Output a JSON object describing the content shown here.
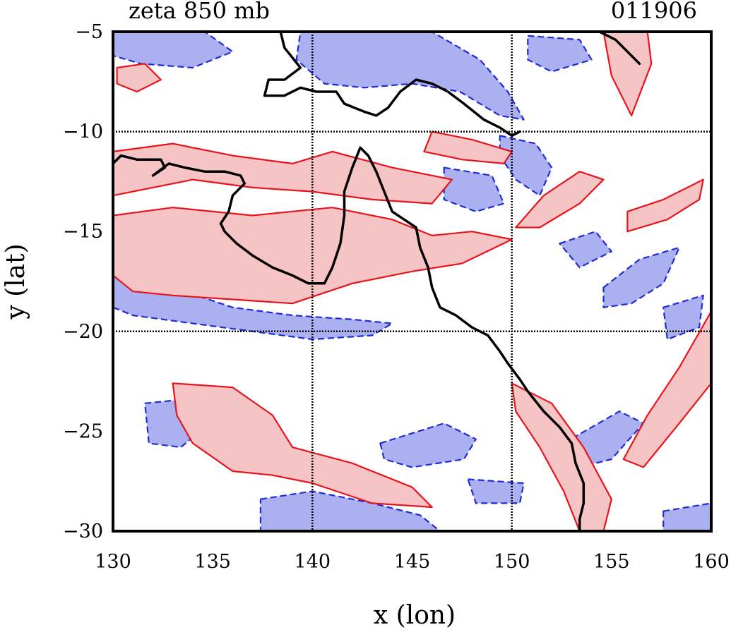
{
  "chart_data": {
    "type": "contour",
    "title": "zeta 850 mb",
    "date_label": "011906",
    "xlabel": "x (lon)",
    "ylabel": "y (lat)",
    "xlim": [
      130,
      160
    ],
    "ylim": [
      -30,
      -5
    ],
    "xticks": [
      130,
      135,
      140,
      145,
      150,
      155,
      160
    ],
    "yticks": [
      -5,
      -10,
      -15,
      -20,
      -25,
      -30
    ],
    "xtick_labels": [
      "130",
      "135",
      "140",
      "145",
      "150",
      "155",
      "160"
    ],
    "ytick_labels": [
      "−5",
      "−10",
      "−15",
      "−20",
      "−25",
      "−30"
    ],
    "grid_x": [
      140,
      150
    ],
    "grid_y": [
      -10,
      -20
    ],
    "colors": {
      "positive_line": "#e8141c",
      "positive_fill": "#f7c4c6",
      "negative_line": "#1f2bd6",
      "negative_fill": "#aab0f0",
      "coast": "#000000"
    },
    "positive_regions": [
      [
        [
          130,
          -11.0
        ],
        [
          133,
          -10.6
        ],
        [
          136,
          -11.2
        ],
        [
          139,
          -11.6
        ],
        [
          141,
          -11.0
        ],
        [
          144,
          -11.8
        ],
        [
          147,
          -12.4
        ],
        [
          146,
          -13.6
        ],
        [
          143,
          -13.4
        ],
        [
          140,
          -13.0
        ],
        [
          137,
          -12.8
        ],
        [
          134,
          -12.4
        ],
        [
          131,
          -13.0
        ],
        [
          130,
          -13.2
        ]
      ],
      [
        [
          130,
          -14.2
        ],
        [
          133,
          -13.8
        ],
        [
          137,
          -14.2
        ],
        [
          141,
          -13.8
        ],
        [
          144,
          -14.4
        ],
        [
          146,
          -15.2
        ],
        [
          148,
          -15.0
        ],
        [
          150,
          -15.4
        ],
        [
          147.5,
          -16.6
        ],
        [
          145,
          -17.0
        ],
        [
          142,
          -17.6
        ],
        [
          139,
          -18.6
        ],
        [
          136,
          -18.4
        ],
        [
          133,
          -18.2
        ],
        [
          131,
          -18.0
        ],
        [
          130,
          -17.2
        ]
      ],
      [
        [
          133,
          -22.6
        ],
        [
          136,
          -22.8
        ],
        [
          138,
          -24.2
        ],
        [
          139,
          -25.8
        ],
        [
          142,
          -26.6
        ],
        [
          145,
          -27.8
        ],
        [
          146,
          -28.8
        ],
        [
          143,
          -28.6
        ],
        [
          140,
          -27.6
        ],
        [
          138,
          -27.2
        ],
        [
          136,
          -27.0
        ],
        [
          134,
          -25.6
        ],
        [
          133.2,
          -24.2
        ]
      ],
      [
        [
          150,
          -22.6
        ],
        [
          152,
          -23.6
        ],
        [
          153.6,
          -25.8
        ],
        [
          155,
          -28.4
        ],
        [
          154.6,
          -30
        ],
        [
          153.4,
          -30
        ],
        [
          152.6,
          -28.0
        ],
        [
          151.4,
          -25.8
        ],
        [
          150.2,
          -24.0
        ]
      ],
      [
        [
          160,
          -19.0
        ],
        [
          158.4,
          -21.8
        ],
        [
          156.8,
          -24.2
        ],
        [
          155.6,
          -26.4
        ],
        [
          156.6,
          -26.8
        ],
        [
          158.4,
          -24.6
        ],
        [
          160,
          -22.6
        ]
      ],
      [
        [
          155.8,
          -14.0
        ],
        [
          157.6,
          -13.4
        ],
        [
          159.6,
          -12.4
        ],
        [
          159.4,
          -13.4
        ],
        [
          157.8,
          -14.4
        ],
        [
          155.8,
          -15.0
        ]
      ],
      [
        [
          151.4,
          -14.8
        ],
        [
          153.4,
          -13.6
        ],
        [
          154.6,
          -12.4
        ],
        [
          153.4,
          -12.0
        ],
        [
          151.6,
          -13.2
        ],
        [
          150.2,
          -14.8
        ]
      ],
      [
        [
          146,
          -10.0
        ],
        [
          148,
          -10.4
        ],
        [
          150,
          -11.0
        ],
        [
          149.6,
          -11.6
        ],
        [
          147.5,
          -11.4
        ],
        [
          145.6,
          -11.0
        ]
      ],
      [
        [
          154.6,
          -5.0
        ],
        [
          156.8,
          -5.0
        ],
        [
          157.0,
          -6.6
        ],
        [
          156.0,
          -9.2
        ],
        [
          155.0,
          -7.2
        ]
      ],
      [
        [
          130.2,
          -6.8
        ],
        [
          131.6,
          -6.6
        ],
        [
          132.4,
          -7.4
        ],
        [
          131.2,
          -8.0
        ],
        [
          130.2,
          -7.6
        ]
      ]
    ],
    "negative_regions": [
      [
        [
          130,
          -5.0
        ],
        [
          134.6,
          -5.0
        ],
        [
          136,
          -6.0
        ],
        [
          134,
          -6.8
        ],
        [
          131.4,
          -6.6
        ],
        [
          130,
          -6.2
        ]
      ],
      [
        [
          139.4,
          -5.0
        ],
        [
          146,
          -5.0
        ],
        [
          148.4,
          -6.4
        ],
        [
          149.8,
          -8.0
        ],
        [
          150.6,
          -9.4
        ],
        [
          149.4,
          -9.2
        ],
        [
          147.4,
          -8.0
        ],
        [
          145,
          -7.6
        ],
        [
          142.6,
          -7.8
        ],
        [
          140.6,
          -7.6
        ],
        [
          139.2,
          -6.4
        ]
      ],
      [
        [
          150.8,
          -5.2
        ],
        [
          153.4,
          -5.4
        ],
        [
          154.0,
          -6.4
        ],
        [
          152.0,
          -7.0
        ],
        [
          150.8,
          -6.4
        ]
      ],
      [
        [
          149.4,
          -10.2
        ],
        [
          151.2,
          -10.6
        ],
        [
          152.0,
          -11.8
        ],
        [
          151.4,
          -13.2
        ],
        [
          150.2,
          -12.4
        ],
        [
          149.4,
          -11.2
        ]
      ],
      [
        [
          146.6,
          -11.8
        ],
        [
          149.0,
          -12.2
        ],
        [
          149.6,
          -13.6
        ],
        [
          148.2,
          -14.0
        ],
        [
          146.6,
          -13.4
        ]
      ],
      [
        [
          130,
          -17.2
        ],
        [
          133,
          -17.8
        ],
        [
          136,
          -18.8
        ],
        [
          139,
          -19.2
        ],
        [
          142,
          -19.4
        ],
        [
          144,
          -19.6
        ],
        [
          143,
          -20.2
        ],
        [
          140,
          -20.4
        ],
        [
          137,
          -20.0
        ],
        [
          134,
          -19.6
        ],
        [
          131,
          -19.2
        ],
        [
          130,
          -18.8
        ]
      ],
      [
        [
          131.6,
          -23.6
        ],
        [
          133.6,
          -23.4
        ],
        [
          134.6,
          -24.8
        ],
        [
          133.4,
          -25.8
        ],
        [
          131.8,
          -25.6
        ]
      ],
      [
        [
          137.4,
          -28.4
        ],
        [
          140,
          -28.0
        ],
        [
          143,
          -28.6
        ],
        [
          145.4,
          -29.2
        ],
        [
          146.4,
          -30
        ],
        [
          137.4,
          -30
        ]
      ],
      [
        [
          143.4,
          -25.6
        ],
        [
          146.6,
          -24.6
        ],
        [
          148.2,
          -25.4
        ],
        [
          147.6,
          -26.4
        ],
        [
          145,
          -26.8
        ],
        [
          143.6,
          -26.4
        ]
      ],
      [
        [
          147.8,
          -27.4
        ],
        [
          150.6,
          -27.6
        ],
        [
          150.4,
          -28.6
        ],
        [
          148.2,
          -28.6
        ]
      ],
      [
        [
          154.6,
          -17.8
        ],
        [
          156.4,
          -16.4
        ],
        [
          158.4,
          -15.8
        ],
        [
          157.6,
          -17.6
        ],
        [
          156.0,
          -18.6
        ],
        [
          154.6,
          -18.8
        ]
      ],
      [
        [
          157.6,
          -18.8
        ],
        [
          159.6,
          -18.2
        ],
        [
          159.4,
          -19.8
        ],
        [
          157.8,
          -20.4
        ]
      ],
      [
        [
          152.6,
          -25.6
        ],
        [
          155.4,
          -24.0
        ],
        [
          156.6,
          -24.6
        ],
        [
          155.0,
          -26.4
        ],
        [
          153.4,
          -26.8
        ]
      ],
      [
        [
          157.6,
          -29.0
        ],
        [
          160,
          -28.6
        ],
        [
          160,
          -30
        ],
        [
          157.6,
          -30
        ]
      ],
      [
        [
          152.4,
          -15.6
        ],
        [
          154.2,
          -15.0
        ],
        [
          155.0,
          -16.0
        ],
        [
          153.4,
          -16.8
        ]
      ]
    ],
    "coastline_main": [
      [
        138.4,
        -5.0
      ],
      [
        138.6,
        -5.8
      ],
      [
        139.4,
        -6.8
      ],
      [
        138.6,
        -7.4
      ],
      [
        137.8,
        -7.4
      ],
      [
        137.6,
        -8.2
      ],
      [
        138.6,
        -8.2
      ],
      [
        139.4,
        -7.8
      ],
      [
        140.2,
        -8.0
      ],
      [
        141.2,
        -8.0
      ],
      [
        141.6,
        -8.6
      ],
      [
        142.6,
        -9.0
      ],
      [
        143.2,
        -9.2
      ],
      [
        143.8,
        -8.8
      ],
      [
        144.4,
        -8.0
      ],
      [
        145.2,
        -7.4
      ],
      [
        146.0,
        -7.6
      ],
      [
        146.8,
        -8.0
      ],
      [
        147.6,
        -8.6
      ],
      [
        148.6,
        -9.4
      ],
      [
        149.4,
        -9.8
      ],
      [
        150.0,
        -10.2
      ],
      [
        150.4,
        -10.0
      ]
    ],
    "coastline_aus": [
      [
        130,
        -11.6
      ],
      [
        130.4,
        -11.2
      ],
      [
        131.2,
        -11.4
      ],
      [
        132.4,
        -11.4
      ],
      [
        132.6,
        -11.8
      ],
      [
        132.0,
        -12.2
      ],
      [
        132.8,
        -11.6
      ],
      [
        133.6,
        -11.8
      ],
      [
        134.6,
        -12.0
      ],
      [
        135.6,
        -12.0
      ],
      [
        136.4,
        -12.2
      ],
      [
        136.6,
        -12.6
      ],
      [
        136.0,
        -13.2
      ],
      [
        135.8,
        -14.0
      ],
      [
        135.4,
        -14.6
      ],
      [
        135.6,
        -15.0
      ],
      [
        136.2,
        -15.6
      ],
      [
        137.0,
        -16.2
      ],
      [
        138.0,
        -16.8
      ],
      [
        139.0,
        -17.2
      ],
      [
        139.8,
        -17.6
      ],
      [
        140.6,
        -17.6
      ],
      [
        141.0,
        -16.8
      ],
      [
        141.4,
        -15.6
      ],
      [
        141.6,
        -14.2
      ],
      [
        141.6,
        -13.0
      ],
      [
        142.0,
        -11.8
      ],
      [
        142.4,
        -10.8
      ],
      [
        142.8,
        -11.2
      ],
      [
        143.2,
        -12.0
      ],
      [
        143.6,
        -13.0
      ],
      [
        144.0,
        -14.0
      ],
      [
        144.6,
        -14.4
      ],
      [
        145.2,
        -14.8
      ],
      [
        145.4,
        -15.8
      ],
      [
        145.8,
        -16.8
      ],
      [
        146.0,
        -17.8
      ],
      [
        146.4,
        -18.8
      ],
      [
        147.2,
        -19.2
      ],
      [
        148.0,
        -19.8
      ],
      [
        148.8,
        -20.2
      ],
      [
        149.4,
        -21.0
      ],
      [
        149.8,
        -21.6
      ],
      [
        150.4,
        -22.4
      ],
      [
        150.8,
        -23.0
      ],
      [
        151.6,
        -24.0
      ],
      [
        152.4,
        -24.8
      ],
      [
        153.0,
        -25.6
      ],
      [
        153.2,
        -26.6
      ],
      [
        153.6,
        -27.6
      ],
      [
        153.6,
        -28.6
      ],
      [
        153.4,
        -29.4
      ],
      [
        153.4,
        -30
      ]
    ],
    "coastline_nb": [
      [
        154.4,
        -5.0
      ],
      [
        155.2,
        -5.4
      ],
      [
        155.8,
        -6.0
      ],
      [
        156.4,
        -6.6
      ]
    ]
  }
}
